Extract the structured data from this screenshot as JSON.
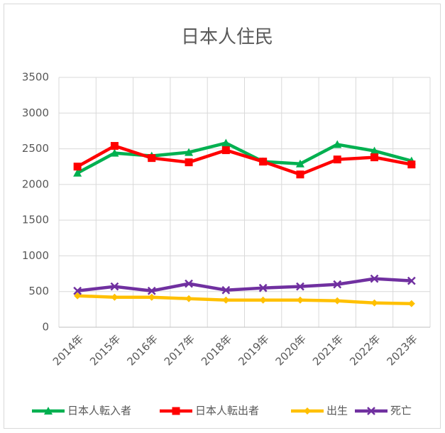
{
  "chart_data": {
    "type": "line",
    "title": "日本人住民",
    "categories": [
      "2014年",
      "2015年",
      "2016年",
      "2017年",
      "2018年",
      "2019年",
      "2020年",
      "2021年",
      "2022年",
      "2023年"
    ],
    "series": [
      {
        "name": "日本人転入者",
        "color": "#00b050",
        "marker": "triangle",
        "values": [
          2160,
          2440,
          2400,
          2450,
          2580,
          2320,
          2290,
          2560,
          2470,
          2330
        ]
      },
      {
        "name": "日本人転出者",
        "color": "#ff0000",
        "marker": "square",
        "values": [
          2250,
          2540,
          2370,
          2310,
          2480,
          2320,
          2140,
          2350,
          2380,
          2280
        ]
      },
      {
        "name": "出生",
        "color": "#ffc000",
        "marker": "diamond",
        "values": [
          440,
          420,
          420,
          400,
          380,
          380,
          380,
          370,
          340,
          330
        ]
      },
      {
        "name": "死亡",
        "color": "#7030a0",
        "marker": "x",
        "values": [
          510,
          570,
          510,
          610,
          520,
          550,
          570,
          600,
          680,
          650
        ]
      }
    ],
    "ylim": [
      0,
      3500
    ],
    "yticks": [
      0,
      500,
      1000,
      1500,
      2000,
      2500,
      3000,
      3500
    ],
    "grid": true,
    "legend": "bottom"
  }
}
